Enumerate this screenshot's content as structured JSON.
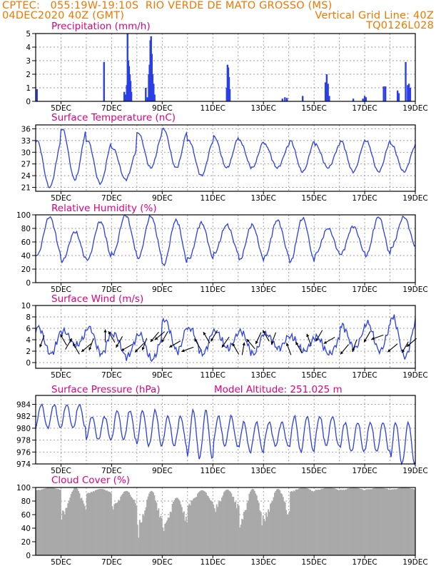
{
  "header": {
    "line1_left": "CPTEC:   055:19W-19:10S  RIO VERDE DE MATO GROSSO (MS)",
    "line2_left": "04DEC2020 40Z (GMT)",
    "line2_right": "Vertical Grid Line: 40Z",
    "line3_right": "TQ0126L028"
  },
  "colors": {
    "header": "#f07800",
    "title": "#e0007f",
    "series": "#2a3fe6",
    "cloud": "#a9a9a9",
    "grid": "#9a9a9a"
  },
  "x_axis": {
    "start_day": 4.0,
    "end_day": 19.0,
    "date_ticks": [
      {
        "day": 5,
        "label": "5DEC"
      },
      {
        "day": 7,
        "label": "7DEC"
      },
      {
        "day": 9,
        "label": "9DEC"
      },
      {
        "day": 11,
        "label": "11DEC"
      },
      {
        "day": 13,
        "label": "13DEC"
      },
      {
        "day": 15,
        "label": "15DEC"
      },
      {
        "day": 17,
        "label": "17DEC"
      },
      {
        "day": 19,
        "label": "19DEC"
      }
    ]
  },
  "chart_data": [
    {
      "type": "bar",
      "title": "Precipitation (mm/h)",
      "ylim": [
        0,
        5
      ],
      "yticks": [
        0,
        1,
        2,
        3,
        4,
        5
      ],
      "bars": [
        {
          "day": 4.05,
          "value": 0.9
        },
        {
          "day": 6.7,
          "value": 2.9
        },
        {
          "day": 7.5,
          "value": 0.7
        },
        {
          "day": 7.55,
          "value": 0.5
        },
        {
          "day": 7.6,
          "value": 1.2
        },
        {
          "day": 7.63,
          "value": 5.0
        },
        {
          "day": 7.66,
          "value": 3.0
        },
        {
          "day": 7.69,
          "value": 2.6
        },
        {
          "day": 7.72,
          "value": 2.0
        },
        {
          "day": 7.75,
          "value": 1.5
        },
        {
          "day": 7.78,
          "value": 0.7
        },
        {
          "day": 8.35,
          "value": 1.0
        },
        {
          "day": 8.42,
          "value": 0.3
        },
        {
          "day": 8.47,
          "value": 2.0
        },
        {
          "day": 8.5,
          "value": 2.7
        },
        {
          "day": 8.53,
          "value": 4.5
        },
        {
          "day": 8.56,
          "value": 4.8
        },
        {
          "day": 8.59,
          "value": 3.5
        },
        {
          "day": 8.62,
          "value": 2.0
        },
        {
          "day": 8.66,
          "value": 1.3
        },
        {
          "day": 8.7,
          "value": 0.5
        },
        {
          "day": 11.55,
          "value": 1.0
        },
        {
          "day": 11.58,
          "value": 2.7
        },
        {
          "day": 11.61,
          "value": 2.5
        },
        {
          "day": 11.64,
          "value": 1.8
        },
        {
          "day": 11.67,
          "value": 0.9
        },
        {
          "day": 13.75,
          "value": 0.2
        },
        {
          "day": 13.85,
          "value": 0.3
        },
        {
          "day": 13.93,
          "value": 0.25
        },
        {
          "day": 14.55,
          "value": 0.4
        },
        {
          "day": 15.45,
          "value": 1.4
        },
        {
          "day": 15.5,
          "value": 2.0
        },
        {
          "day": 15.55,
          "value": 1.3
        },
        {
          "day": 15.6,
          "value": 0.4
        },
        {
          "day": 16.55,
          "value": 0.2
        },
        {
          "day": 16.93,
          "value": 0.2
        },
        {
          "day": 17.0,
          "value": 0.4
        },
        {
          "day": 17.05,
          "value": 0.3
        },
        {
          "day": 17.75,
          "value": 1.1
        },
        {
          "day": 17.82,
          "value": 1.1
        },
        {
          "day": 18.3,
          "value": 0.8
        },
        {
          "day": 18.35,
          "value": 0.6
        },
        {
          "day": 18.62,
          "value": 2.9
        },
        {
          "day": 18.7,
          "value": 1.2
        },
        {
          "day": 18.75,
          "value": 1.3
        },
        {
          "day": 18.8,
          "value": 1.0
        }
      ]
    },
    {
      "type": "line",
      "title": "Surface Temperature (nC)",
      "ylim": [
        20,
        37
      ],
      "yticks": [
        21,
        24,
        27,
        30,
        33,
        36
      ],
      "daily_min": [
        21,
        23,
        22,
        23,
        26,
        26,
        24,
        26,
        26,
        26,
        25,
        26,
        25,
        25,
        25
      ],
      "daily_max": [
        33,
        36,
        33,
        31,
        35,
        36,
        33,
        34,
        33,
        32,
        33,
        32,
        33,
        33,
        32
      ]
    },
    {
      "type": "line",
      "title": "Relative Humidity (%)",
      "ylim": [
        0,
        100
      ],
      "yticks": [
        0,
        20,
        40,
        60,
        80,
        100
      ],
      "daily_min": [
        40,
        32,
        34,
        42,
        36,
        26,
        35,
        43,
        33,
        38,
        30,
        42,
        42,
        40,
        52
      ],
      "daily_max": [
        97,
        75,
        90,
        100,
        98,
        92,
        88,
        85,
        85,
        92,
        95,
        80,
        83,
        97,
        97
      ]
    },
    {
      "type": "line",
      "title": "Surface Wind (m/s)",
      "ylim": [
        -1,
        10
      ],
      "yticks": [
        0,
        2,
        4,
        6,
        8,
        10
      ],
      "daily_min": [
        1.5,
        3.0,
        1.5,
        1.0,
        0.5,
        2.0,
        1.5,
        2.5,
        1.5,
        2.5,
        2.0,
        1.5,
        2.5,
        2.0,
        1.0
      ],
      "daily_max": [
        6.2,
        5.5,
        6.2,
        5.0,
        5.0,
        7.5,
        6.0,
        5.5,
        5.5,
        5.0,
        4.5,
        4.5,
        6.5,
        7.0,
        8.0
      ],
      "wind_arrows": [
        {
          "day": 4.25,
          "dir_deg": 200
        },
        {
          "day": 5.1,
          "dir_deg": 330
        },
        {
          "day": 5.3,
          "dir_deg": 30
        },
        {
          "day": 5.6,
          "dir_deg": 330
        },
        {
          "day": 6.0,
          "dir_deg": 230
        },
        {
          "day": 6.2,
          "dir_deg": 200
        },
        {
          "day": 6.75,
          "dir_deg": 0
        },
        {
          "day": 7.0,
          "dir_deg": 330
        },
        {
          "day": 7.3,
          "dir_deg": 210
        },
        {
          "day": 7.6,
          "dir_deg": 240
        },
        {
          "day": 8.1,
          "dir_deg": 225
        },
        {
          "day": 8.3,
          "dir_deg": 200
        },
        {
          "day": 8.7,
          "dir_deg": 220
        },
        {
          "day": 8.9,
          "dir_deg": 230
        },
        {
          "day": 9.1,
          "dir_deg": 210
        },
        {
          "day": 9.5,
          "dir_deg": 240
        },
        {
          "day": 10.0,
          "dir_deg": 250
        },
        {
          "day": 10.4,
          "dir_deg": 330
        },
        {
          "day": 10.75,
          "dir_deg": 330
        },
        {
          "day": 11.05,
          "dir_deg": 210
        },
        {
          "day": 11.5,
          "dir_deg": 215
        },
        {
          "day": 11.9,
          "dir_deg": 330
        },
        {
          "day": 12.2,
          "dir_deg": 10
        },
        {
          "day": 12.5,
          "dir_deg": 320
        },
        {
          "day": 12.8,
          "dir_deg": 205
        },
        {
          "day": 13.1,
          "dir_deg": 330
        },
        {
          "day": 13.4,
          "dir_deg": 200
        },
        {
          "day": 14.0,
          "dir_deg": 340
        },
        {
          "day": 14.4,
          "dir_deg": 330
        },
        {
          "day": 14.8,
          "dir_deg": 340
        },
        {
          "day": 15.2,
          "dir_deg": 210
        },
        {
          "day": 15.6,
          "dir_deg": 240
        },
        {
          "day": 16.2,
          "dir_deg": 220
        },
        {
          "day": 16.6,
          "dir_deg": 200
        },
        {
          "day": 17.1,
          "dir_deg": 210
        },
        {
          "day": 17.5,
          "dir_deg": 250
        },
        {
          "day": 18.1,
          "dir_deg": 230
        },
        {
          "day": 18.6,
          "dir_deg": 210
        },
        {
          "day": 18.85,
          "dir_deg": 230
        }
      ]
    },
    {
      "type": "line",
      "title": "Surface Pressure (hPa)",
      "annotation": "Model Altitude: 251.025 m",
      "ylim": [
        974,
        985.5
      ],
      "yticks": [
        974,
        976,
        978,
        980,
        982,
        984
      ],
      "daily_min": [
        980,
        980,
        978,
        978,
        977,
        977,
        975,
        977,
        976,
        977,
        976,
        977,
        976,
        976,
        974
      ],
      "daily_max": [
        984,
        984,
        982,
        983,
        983,
        982,
        983,
        982,
        981,
        981,
        982,
        982,
        981,
        981,
        981
      ]
    },
    {
      "type": "area",
      "title": "Cloud Cover (%)",
      "ylim": [
        0,
        100
      ],
      "yticks": [
        0,
        20,
        40,
        60,
        80,
        100
      ],
      "daily_low": [
        95,
        50,
        90,
        65,
        25,
        30,
        70,
        60,
        30,
        45,
        92,
        95,
        95,
        96,
        96
      ],
      "daily_high": [
        100,
        100,
        98,
        95,
        95,
        85,
        96,
        97,
        98,
        98,
        100,
        100,
        100,
        100,
        100
      ]
    }
  ]
}
